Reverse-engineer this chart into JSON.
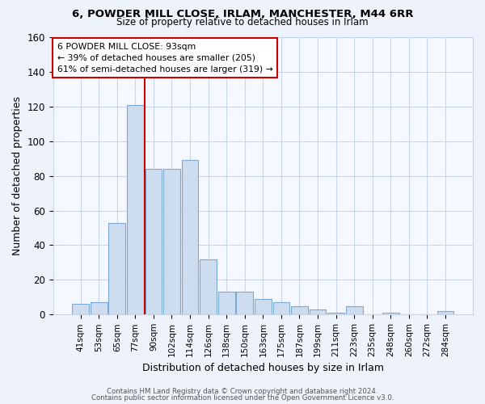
{
  "title": "6, POWDER MILL CLOSE, IRLAM, MANCHESTER, M44 6RR",
  "subtitle": "Size of property relative to detached houses in Irlam",
  "xlabel": "Distribution of detached houses by size in Irlam",
  "ylabel": "Number of detached properties",
  "bar_labels": [
    "41sqm",
    "53sqm",
    "65sqm",
    "77sqm",
    "90sqm",
    "102sqm",
    "114sqm",
    "126sqm",
    "138sqm",
    "150sqm",
    "163sqm",
    "175sqm",
    "187sqm",
    "199sqm",
    "211sqm",
    "223sqm",
    "235sqm",
    "248sqm",
    "260sqm",
    "272sqm",
    "284sqm"
  ],
  "bar_values": [
    6,
    7,
    53,
    121,
    84,
    84,
    89,
    32,
    13,
    13,
    9,
    7,
    5,
    3,
    1,
    5,
    0,
    1,
    0,
    0,
    2
  ],
  "bar_color": "#cddcef",
  "bar_edge_color": "#7aaad4",
  "vline_after_index": 3,
  "vline_color": "#cc0000",
  "annotation_title": "6 POWDER MILL CLOSE: 93sqm",
  "annotation_line1": "← 39% of detached houses are smaller (205)",
  "annotation_line2": "61% of semi-detached houses are larger (319) →",
  "annotation_box_color": "#ffffff",
  "annotation_box_edge": "#cc0000",
  "ylim": [
    0,
    160
  ],
  "yticks": [
    0,
    20,
    40,
    60,
    80,
    100,
    120,
    140,
    160
  ],
  "footnote1": "Contains HM Land Registry data © Crown copyright and database right 2024.",
  "footnote2": "Contains public sector information licensed under the Open Government Licence v3.0.",
  "bg_color": "#eef2fa",
  "plot_bg_color": "#f5f8ff",
  "grid_color": "#c8d4e8"
}
